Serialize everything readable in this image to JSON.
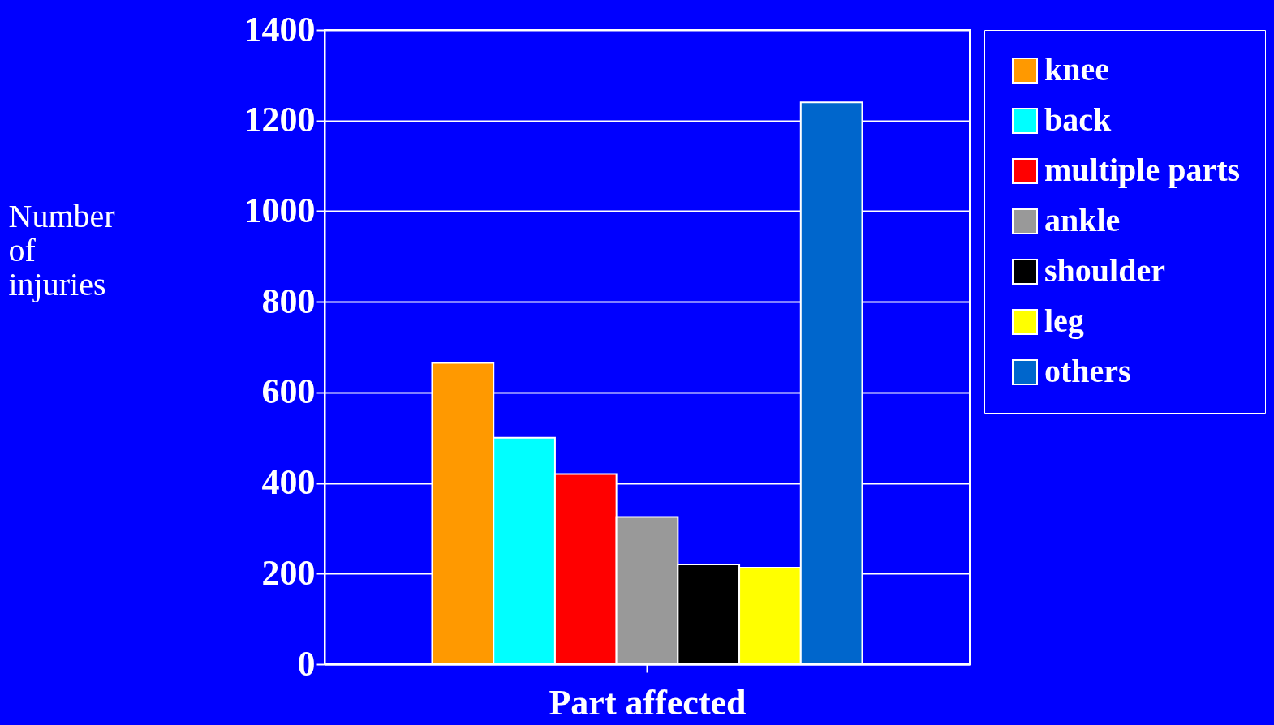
{
  "chart_data": {
    "type": "bar",
    "xlabel": "Part affected",
    "ylabel": "Number of injuries",
    "categories": [
      null
    ],
    "series": [
      {
        "name": "knee",
        "color": "#ff9900",
        "values": [
          665
        ]
      },
      {
        "name": "back",
        "color": "#00ffff",
        "values": [
          500
        ]
      },
      {
        "name": "multiple parts",
        "color": "#ff0000",
        "values": [
          420
        ]
      },
      {
        "name": "ankle",
        "color": "#999999",
        "values": [
          325
        ]
      },
      {
        "name": "shoulder",
        "color": "#000000",
        "values": [
          220
        ]
      },
      {
        "name": "leg",
        "color": "#ffff00",
        "values": [
          213
        ]
      },
      {
        "name": "others",
        "color": "#0066cc",
        "values": [
          1240
        ]
      }
    ],
    "ylim": [
      0,
      1400
    ],
    "yticks": [
      0,
      200,
      400,
      600,
      800,
      1000,
      1200,
      1400
    ],
    "grid": "y",
    "legend": "right"
  }
}
